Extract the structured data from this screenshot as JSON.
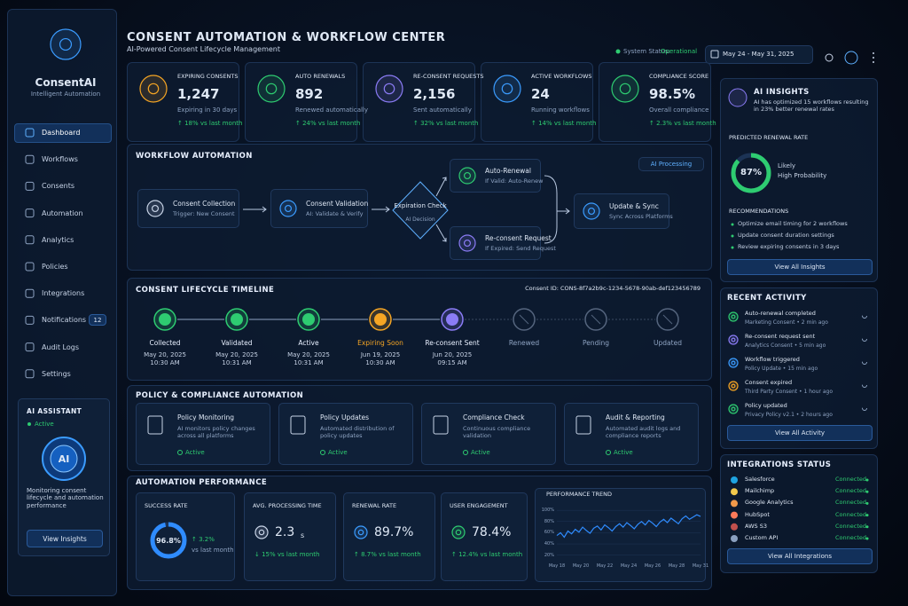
{
  "sidebar": {
    "brand": "ConsentAI",
    "tagline": "Intelligent Automation",
    "nav": [
      {
        "label": "Dashboard"
      },
      {
        "label": "Workflows"
      },
      {
        "label": "Consents"
      },
      {
        "label": "Automation"
      },
      {
        "label": "Analytics"
      },
      {
        "label": "Policies"
      },
      {
        "label": "Integrations"
      },
      {
        "label": "Notifications",
        "badge": "12"
      },
      {
        "label": "Audit Logs"
      },
      {
        "label": "Settings"
      }
    ],
    "assistant": {
      "title": "AI ASSISTANT",
      "status": "Active",
      "icon": "AI",
      "text": "Monitoring consent lifecycle and automation performance",
      "button": "View Insights"
    }
  },
  "header": {
    "title": "CONSENT AUTOMATION & WORKFLOW CENTER",
    "subtitle": "AI-Powered Consent Lifecycle Management",
    "status_label": "System Status:",
    "status": "Operational",
    "date_range": "May 24 - May 31, 2025"
  },
  "kpis": [
    {
      "title": "EXPIRING CONSENTS",
      "value": "1,247",
      "sub": "Expiring in 30 days",
      "change": "↑ 18% vs last month",
      "color": "#f5a524"
    },
    {
      "title": "AUTO RENEWALS",
      "value": "892",
      "sub": "Renewed automatically",
      "change": "↑ 24% vs last month",
      "color": "#2ecc71"
    },
    {
      "title": "RE-CONSENT REQUESTS",
      "value": "2,156",
      "sub": "Sent automatically",
      "change": "↑ 32% vs last month",
      "color": "#8b7cf6"
    },
    {
      "title": "ACTIVE WORKFLOWS",
      "value": "24",
      "sub": "Running workflows",
      "change": "↑ 14% vs last month",
      "color": "#3b9cff"
    },
    {
      "title": "COMPLIANCE SCORE",
      "value": "98.5%",
      "sub": "Overall compliance",
      "change": "↑ 2.3% vs last month",
      "color": "#2ecc71"
    }
  ],
  "workflow": {
    "title": "WORKFLOW AUTOMATION",
    "badge": "AI Processing",
    "steps": [
      {
        "title": "Consent Collection",
        "sub": "Trigger: New Consent"
      },
      {
        "title": "Consent Validation",
        "sub": "AI: Validate & Verify"
      }
    ],
    "decision": {
      "title": "Expiration Check",
      "sub": "AI Decision"
    },
    "branches": [
      {
        "title": "Auto-Renewal",
        "sub": "If Valid: Auto-Renew"
      },
      {
        "title": "Re-consent Request",
        "sub": "If Expired: Send Request"
      }
    ],
    "final": {
      "title": "Update & Sync",
      "sub": "Sync Across Platforms"
    }
  },
  "timeline": {
    "title": "CONSENT LIFECYCLE TIMELINE",
    "consent_id": "Consent ID: CONS-8f7a2b9c-1234-5678-90ab-def123456789",
    "stages": [
      {
        "label": "Collected",
        "date": "May 20, 2025",
        "time": "10:30 AM",
        "state": "done"
      },
      {
        "label": "Validated",
        "date": "May 20, 2025",
        "time": "10:31 AM",
        "state": "done"
      },
      {
        "label": "Active",
        "date": "May 20, 2025",
        "time": "10:31 AM",
        "state": "done"
      },
      {
        "label": "Expiring Soon",
        "date": "Jun 19, 2025",
        "time": "10:30 AM",
        "state": "warning"
      },
      {
        "label": "Re-consent Sent",
        "date": "Jun 20, 2025",
        "time": "09:15 AM",
        "state": "current"
      },
      {
        "label": "Renewed",
        "state": "pending"
      },
      {
        "label": "Pending",
        "state": "pending"
      },
      {
        "label": "Updated",
        "state": "pending"
      }
    ]
  },
  "policy": {
    "title": "POLICY & COMPLIANCE AUTOMATION",
    "items": [
      {
        "title": "Policy Monitoring",
        "desc": "AI monitors policy changes across all platforms",
        "status": "Active"
      },
      {
        "title": "Policy Updates",
        "desc": "Automated distribution of policy updates",
        "status": "Active"
      },
      {
        "title": "Compliance Check",
        "desc": "Continuous compliance validation",
        "status": "Active"
      },
      {
        "title": "Audit & Reporting",
        "desc": "Automated audit logs and compliance reports",
        "status": "Active"
      }
    ]
  },
  "performance": {
    "title": "AUTOMATION PERFORMANCE",
    "success": {
      "title": "SUCCESS RATE",
      "value": 96.8,
      "label": "96.8%",
      "change": "↑ 3.2%",
      "note": "vs last month"
    },
    "processing": {
      "title": "AVG. PROCESSING TIME",
      "value": "2.3",
      "unit": "s",
      "change": "↓ 15% vs last month"
    },
    "renewal": {
      "title": "RENEWAL RATE",
      "value": "89.7%",
      "change": "↑ 8.7% vs last month"
    },
    "engagement": {
      "title": "USER ENGAGEMENT",
      "value": "78.4%",
      "change": "↑ 12.4% vs last month"
    },
    "trend": {
      "title": "PERFORMANCE TREND",
      "xlabels": [
        "May 18",
        "May 20",
        "May 22",
        "May 24",
        "May 26",
        "May 28",
        "May 31"
      ],
      "ylim": [
        10,
        105
      ],
      "yticks": [
        {
          "value": 100,
          "label": "100%"
        },
        {
          "value": 80,
          "label": "80%"
        },
        {
          "value": 60,
          "label": "60%"
        },
        {
          "value": 40,
          "label": "40%"
        },
        {
          "value": 20,
          "label": "20%"
        }
      ],
      "values": [
        55,
        60,
        52,
        63,
        58,
        66,
        61,
        70,
        64,
        59,
        68,
        72,
        65,
        74,
        69,
        63,
        71,
        76,
        70,
        78,
        73,
        67,
        75,
        80,
        74,
        82,
        77,
        71,
        79,
        84,
        78,
        86,
        81,
        76,
        85,
        90,
        84,
        88,
        92,
        89
      ]
    }
  },
  "insights": {
    "title": "AI INSIGHTS",
    "text": "AI has optimized 15 workflows resulting in 23% better renewal rates",
    "predicted_title": "PREDICTED RENEWAL RATE",
    "predicted": {
      "value": 87,
      "label": "87%"
    },
    "level": "Likely",
    "level_note": "High Probability",
    "rec_title": "RECOMMENDATIONS",
    "recs": [
      "Optimize email timing for 2 workflows",
      "Update consent duration settings",
      "Review expiring consents in 3 days"
    ],
    "button": "View All Insights"
  },
  "activity": {
    "title": "RECENT ACTIVITY",
    "items": [
      {
        "title": "Auto-renewal completed",
        "meta": "Marketing Consent • 2 min ago",
        "color": "#2ecc71"
      },
      {
        "title": "Re-consent request sent",
        "meta": "Analytics Consent • 5 min ago",
        "color": "#8b7cf6"
      },
      {
        "title": "Workflow triggered",
        "meta": "Policy Update • 15 min ago",
        "color": "#3b9cff"
      },
      {
        "title": "Consent expired",
        "meta": "Third Party Consent • 1 hour ago",
        "color": "#f5a524"
      },
      {
        "title": "Policy updated",
        "meta": "Privacy Policy v2.1 • 2 hours ago",
        "color": "#2ecc71"
      }
    ],
    "button": "View All Activity"
  },
  "integrations": {
    "title": "INTEGRATIONS STATUS",
    "items": [
      {
        "name": "Salesforce",
        "status": "Connected",
        "color": "#1fa3e0"
      },
      {
        "name": "Mailchimp",
        "status": "Connected",
        "color": "#f2c94c"
      },
      {
        "name": "Google Analytics",
        "status": "Connected",
        "color": "#f2994a"
      },
      {
        "name": "HubSpot",
        "status": "Connected",
        "color": "#ff7a59"
      },
      {
        "name": "AWS S3",
        "status": "Connected",
        "color": "#c0504d"
      },
      {
        "name": "Custom API",
        "status": "Connected",
        "color": "#8aa0c0"
      }
    ],
    "button": "View All Integrations"
  }
}
